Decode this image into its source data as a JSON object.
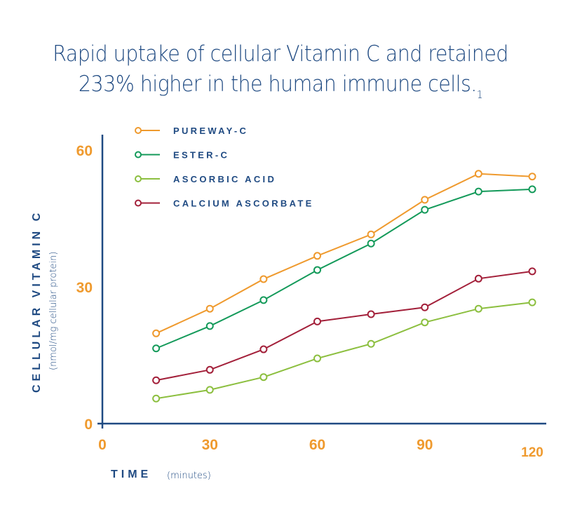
{
  "chart_data": {
    "type": "line",
    "title_line1": "Rapid uptake of cellular Vitamin C and retained",
    "title_line2": "233% higher in the human immune cells.",
    "title_footnote": "1",
    "xlabel": "TIME",
    "xlabel_unit": "(minutes)",
    "ylabel": "CELLULAR VITAMIN C",
    "ylabel_unit": "(nmol/mg cellular protein)",
    "xlim": [
      0,
      120
    ],
    "ylim": [
      0,
      60
    ],
    "x_ticks": [
      0,
      30,
      60,
      90,
      120
    ],
    "y_ticks": [
      0,
      30,
      60
    ],
    "grid": false,
    "legend_position": "top-left",
    "x": [
      15,
      30,
      45,
      60,
      75,
      90,
      105,
      120
    ],
    "series": [
      {
        "name": "PUREWAY-C",
        "color": "#ef9a2e",
        "values": [
          19.8,
          25.2,
          31.7,
          36.8,
          41.5,
          49.1,
          54.8,
          54.2
        ]
      },
      {
        "name": "ESTER-C",
        "color": "#149a5a",
        "values": [
          16.5,
          21.4,
          27.1,
          33.7,
          39.5,
          46.9,
          50.9,
          51.4
        ]
      },
      {
        "name": "ASCORBIC ACID",
        "color": "#8cbf3f",
        "values": [
          5.5,
          7.4,
          10.2,
          14.3,
          17.5,
          22.2,
          25.2,
          26.6
        ]
      },
      {
        "name": "CALCIUM ASCORBATE",
        "color": "#a3203a",
        "values": [
          9.5,
          11.8,
          16.3,
          22.4,
          24.0,
          25.5,
          31.8,
          33.4
        ]
      }
    ],
    "axis_color": "#1f4a82",
    "tick_color": "#ef9a2e"
  }
}
